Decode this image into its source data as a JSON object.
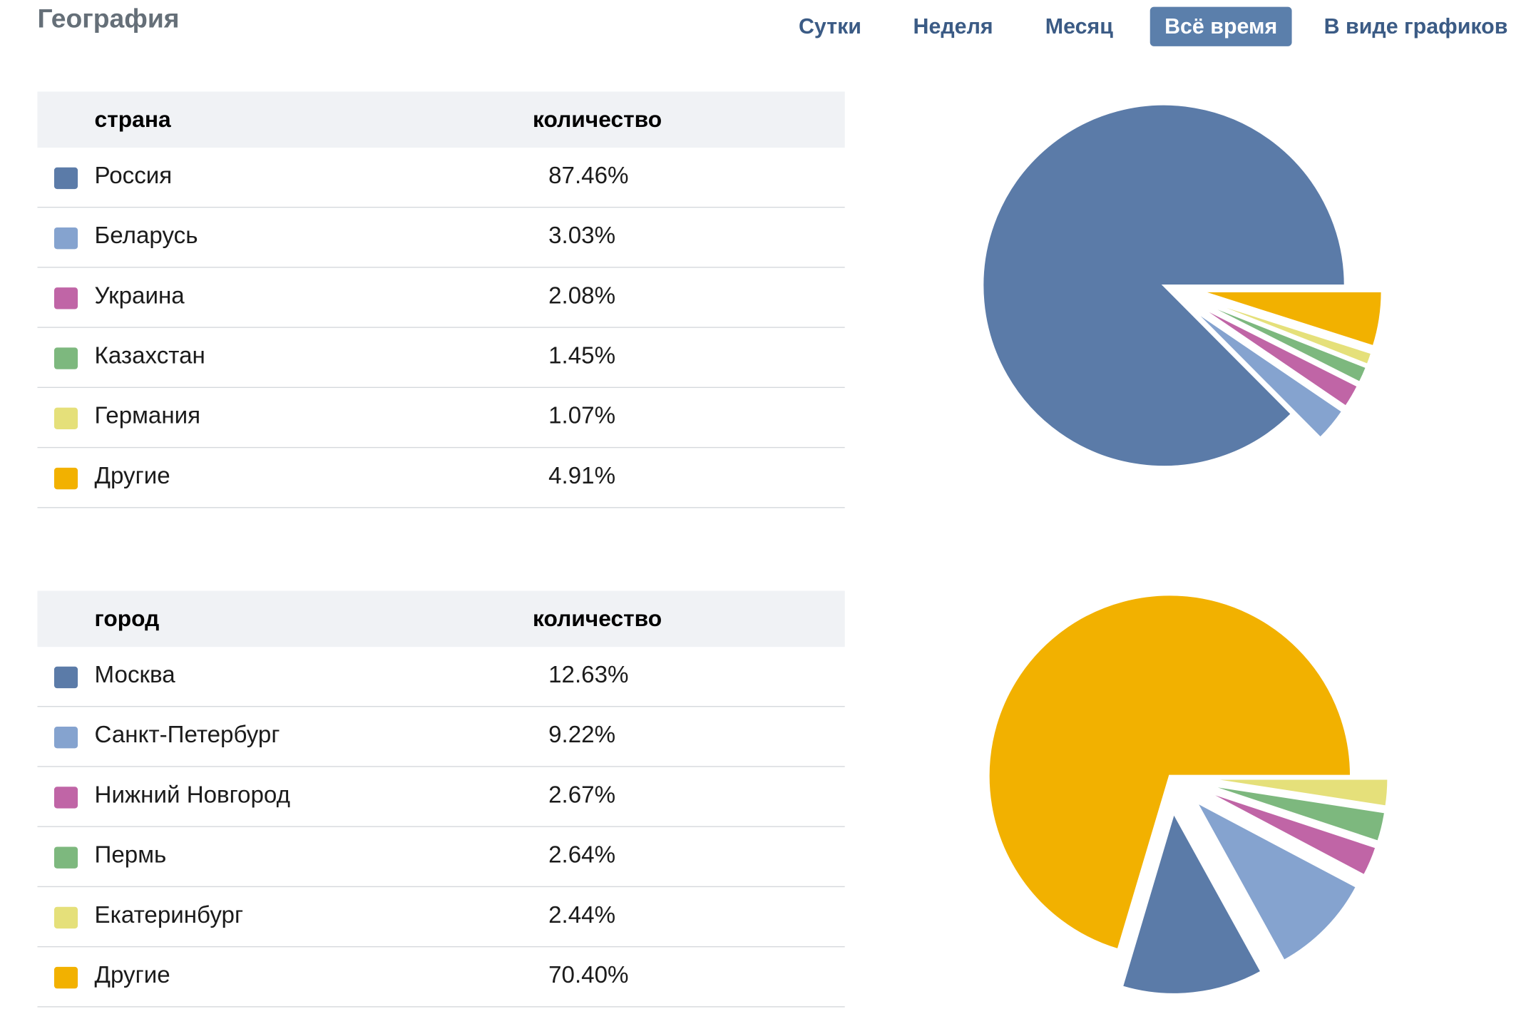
{
  "title": "География",
  "tabs": [
    {
      "label": "Сутки",
      "active": false
    },
    {
      "label": "Неделя",
      "active": false
    },
    {
      "label": "Месяц",
      "active": false
    },
    {
      "label": "Всё время",
      "active": true
    },
    {
      "label": "В виде графиков",
      "active": false
    }
  ],
  "countries": {
    "col_name": "страна",
    "col_value": "количество",
    "rows": [
      {
        "name": "Россия",
        "value": "87.46%",
        "color": "#5b7ba8"
      },
      {
        "name": "Беларусь",
        "value": "3.03%",
        "color": "#85a3cf"
      },
      {
        "name": "Украина",
        "value": "2.08%",
        "color": "#c065a6"
      },
      {
        "name": "Казахстан",
        "value": "1.45%",
        "color": "#7db87e"
      },
      {
        "name": "Германия",
        "value": "1.07%",
        "color": "#e5e07a"
      },
      {
        "name": "Другие",
        "value": "4.91%",
        "color": "#f2b100"
      }
    ]
  },
  "cities": {
    "col_name": "город",
    "col_value": "количество",
    "rows": [
      {
        "name": "Москва",
        "value": "12.63%",
        "color": "#5b7ba8"
      },
      {
        "name": "Санкт-Петербург",
        "value": "9.22%",
        "color": "#85a3cf"
      },
      {
        "name": "Нижний Новгород",
        "value": "2.67%",
        "color": "#c065a6"
      },
      {
        "name": "Пермь",
        "value": "2.64%",
        "color": "#7db87e"
      },
      {
        "name": "Екатеринбург",
        "value": "2.44%",
        "color": "#e5e07a"
      },
      {
        "name": "Другие",
        "value": "70.40%",
        "color": "#f2b100"
      }
    ]
  },
  "chart_data": [
    {
      "type": "pie",
      "labels": [
        "Россия",
        "Беларусь",
        "Украина",
        "Казахстан",
        "Германия",
        "Другие"
      ],
      "values": [
        87.46,
        3.03,
        2.08,
        1.45,
        1.07,
        4.91
      ],
      "colors": [
        "#5b7ba8",
        "#85a3cf",
        "#c065a6",
        "#7db87e",
        "#e5e07a",
        "#f2b100"
      ],
      "largest_slice_detached": true
    },
    {
      "type": "pie",
      "labels": [
        "Москва",
        "Санкт-Петербург",
        "Нижний Новгород",
        "Пермь",
        "Екатеринбург",
        "Другие"
      ],
      "values": [
        12.63,
        9.22,
        2.67,
        2.64,
        2.44,
        70.4
      ],
      "colors": [
        "#5b7ba8",
        "#85a3cf",
        "#c065a6",
        "#7db87e",
        "#e5e07a",
        "#f2b100"
      ],
      "largest_slice_detached": true
    }
  ]
}
